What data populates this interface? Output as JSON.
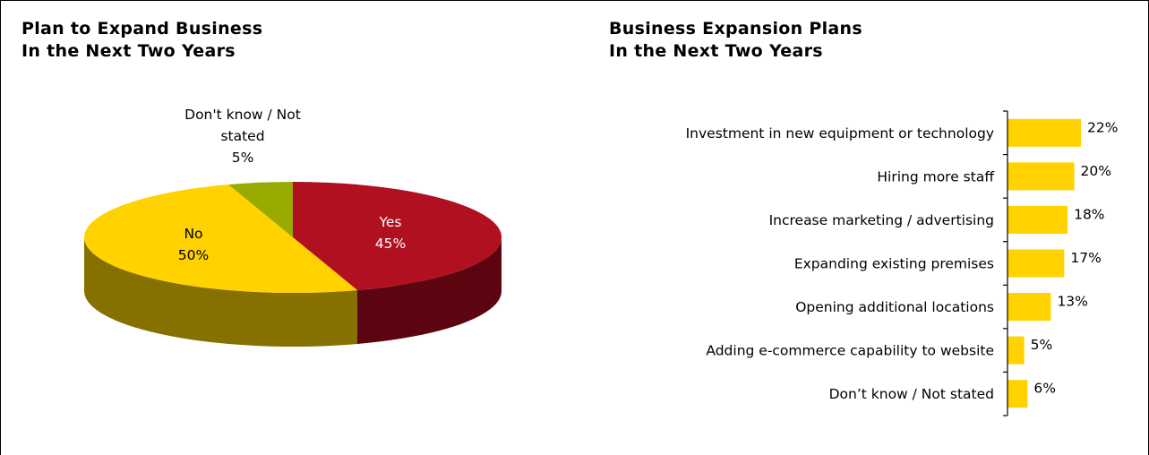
{
  "chart_data": [
    {
      "type": "pie",
      "title": [
        "Plan to Expand Business",
        "In the Next Two Years"
      ],
      "slices": [
        {
          "label": "Yes",
          "value": 45,
          "display": "45%",
          "color": "#b01020",
          "side_color": "#5c0510"
        },
        {
          "label": "No",
          "value": 50,
          "display": "50%",
          "color": "#ffd200",
          "side_color": "#857000"
        },
        {
          "label": [
            "Don't know / Not",
            "stated"
          ],
          "value": 5,
          "display": "5%",
          "color": "#99aa00",
          "side_color": "#5a6400"
        }
      ]
    },
    {
      "type": "bar",
      "orientation": "horizontal",
      "title": [
        "Business Expansion Plans",
        "In the Next Two Years"
      ],
      "categories": [
        "Investment in new equipment or technology",
        "Hiring more staff",
        "Increase marketing / advertising",
        "Expanding existing premises",
        "Opening additional locations",
        "Adding e-commerce capability to website",
        "Don’t know / Not stated"
      ],
      "values": [
        22,
        20,
        18,
        17,
        13,
        5,
        6
      ],
      "value_labels": [
        "22%",
        "20%",
        "18%",
        "17%",
        "13%",
        "5%",
        "6%"
      ],
      "bar_color": "#ffd200",
      "xlim": [
        0,
        22
      ]
    }
  ]
}
